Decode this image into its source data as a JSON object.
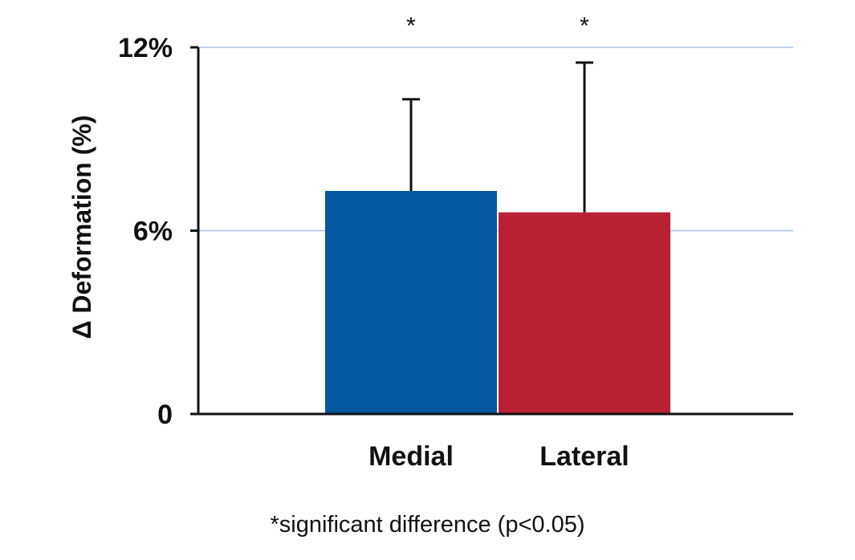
{
  "chart_data": {
    "type": "bar",
    "categories": [
      "Medial",
      "Lateral"
    ],
    "values": [
      7.3,
      6.6
    ],
    "error_upper": [
      10.3,
      11.5
    ],
    "significance_markers": [
      "*",
      "*"
    ],
    "ylabel": "Δ Deformation (%)",
    "xlabel": "",
    "ylim": [
      0,
      12
    ],
    "yticks": [
      0,
      6,
      12
    ],
    "ytick_labels": [
      "0",
      "6%",
      "12%"
    ],
    "grid": true,
    "legend": false,
    "footnote": "*significant difference (p<0.05)"
  },
  "colors": {
    "medial_bar": "#0557a0",
    "lateral_bar": "#b82234",
    "gridline": "#a8c4e6",
    "axis": "#111111"
  }
}
